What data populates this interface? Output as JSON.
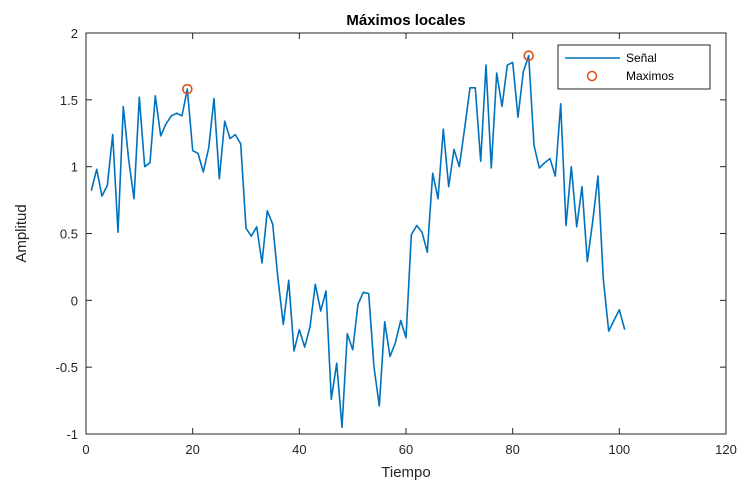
{
  "chart_data": {
    "type": "line",
    "title": "Máximos locales",
    "xlabel": "Tiempo",
    "ylabel": "Amplitud",
    "xlim": [
      0,
      120
    ],
    "ylim": [
      -1,
      2
    ],
    "xticks": [
      0,
      20,
      40,
      60,
      80,
      100,
      120
    ],
    "xtick_labels": [
      "0",
      "20",
      "40",
      "60",
      "80",
      "100",
      "120"
    ],
    "yticks": [
      -1,
      -0.5,
      0,
      0.5,
      1,
      1.5,
      2
    ],
    "ytick_labels": [
      "-1",
      "-0.5",
      "0",
      "0.5",
      "1",
      "1.5",
      "2"
    ],
    "grid": false,
    "legend_position": "top-right",
    "series": [
      {
        "name": "Señal",
        "kind": "line",
        "color": "#0072BD",
        "x": [
          1,
          2,
          3,
          4,
          5,
          6,
          7,
          8,
          9,
          10,
          11,
          12,
          13,
          14,
          15,
          16,
          17,
          18,
          19,
          20,
          21,
          22,
          23,
          24,
          25,
          26,
          27,
          28,
          29,
          30,
          31,
          32,
          33,
          34,
          35,
          36,
          37,
          38,
          39,
          40,
          41,
          42,
          43,
          44,
          45,
          46,
          47,
          48,
          49,
          50,
          51,
          52,
          53,
          54,
          55,
          56,
          57,
          58,
          59,
          60,
          61,
          62,
          63,
          64,
          65,
          66,
          67,
          68,
          69,
          70,
          71,
          72,
          73,
          74,
          75,
          76,
          77,
          78,
          79,
          80,
          81,
          82,
          83,
          84,
          85,
          86,
          87,
          88,
          89,
          90,
          91,
          92,
          93,
          94,
          95,
          96,
          97,
          98,
          99,
          100,
          101
        ],
        "y": [
          0.82,
          0.98,
          0.78,
          0.86,
          1.24,
          0.51,
          1.45,
          1.05,
          0.76,
          1.52,
          1.0,
          1.03,
          1.53,
          1.23,
          1.32,
          1.38,
          1.4,
          1.38,
          1.58,
          1.12,
          1.1,
          0.96,
          1.14,
          1.51,
          0.91,
          1.34,
          1.21,
          1.24,
          1.17,
          0.54,
          0.48,
          0.55,
          0.28,
          0.67,
          0.57,
          0.16,
          -0.18,
          0.15,
          -0.38,
          -0.22,
          -0.35,
          -0.2,
          0.12,
          -0.08,
          0.07,
          -0.74,
          -0.47,
          -0.95,
          -0.25,
          -0.37,
          -0.03,
          0.06,
          0.05,
          -0.5,
          -0.79,
          -0.16,
          -0.42,
          -0.32,
          -0.15,
          -0.28,
          0.49,
          0.56,
          0.51,
          0.36,
          0.95,
          0.76,
          1.28,
          0.85,
          1.13,
          1.0,
          1.29,
          1.59,
          1.59,
          1.04,
          1.76,
          0.99,
          1.7,
          1.45,
          1.76,
          1.78,
          1.37,
          1.71,
          1.83,
          1.16,
          0.99,
          1.03,
          1.06,
          0.93,
          1.47,
          0.56,
          1.0,
          0.55,
          0.85,
          0.29,
          0.59,
          0.93,
          0.16,
          -0.23,
          -0.15,
          -0.07,
          -0.22
        ]
      },
      {
        "name": "Maximos",
        "kind": "marker",
        "color": "#D95319",
        "x": [
          19,
          83
        ],
        "y": [
          1.58,
          1.83
        ]
      }
    ]
  }
}
